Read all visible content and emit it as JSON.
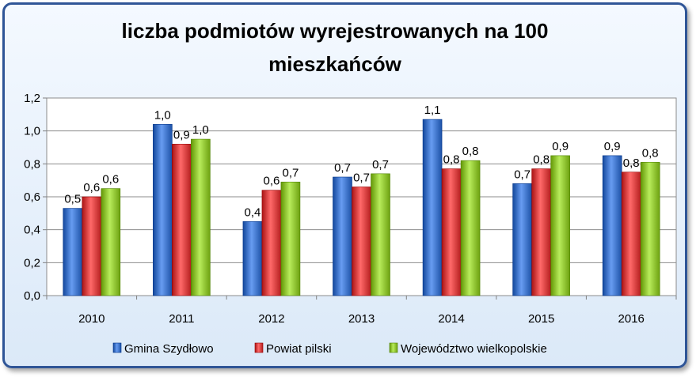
{
  "chart_data": {
    "type": "bar",
    "title_lines": [
      "liczba podmiotów wyrejestrowanych na 100",
      "mieszkańców"
    ],
    "xlabel": "",
    "ylabel": "",
    "categories": [
      "2010",
      "2011",
      "2012",
      "2013",
      "2014",
      "2015",
      "2016"
    ],
    "series": [
      {
        "name": "Gmina Szydłowo",
        "color": "#3a6fc4",
        "values": [
          0.53,
          1.04,
          0.45,
          0.72,
          1.07,
          0.68,
          0.85
        ],
        "labels": [
          "0,5",
          "1,0",
          "0,4",
          "0,7",
          "1,1",
          "0,7",
          "0,9"
        ]
      },
      {
        "name": "Powiat pilski",
        "color": "#d23c3c",
        "values": [
          0.6,
          0.92,
          0.64,
          0.66,
          0.77,
          0.77,
          0.75
        ],
        "labels": [
          "0,6",
          "0,9",
          "0,6",
          "0,7",
          "0,8",
          "0,8",
          "0,8"
        ]
      },
      {
        "name": "Województwo wielkopolskie",
        "color": "#8bbf2e",
        "values": [
          0.65,
          0.95,
          0.69,
          0.74,
          0.82,
          0.85,
          0.81
        ],
        "labels": [
          "0,6",
          "1,0",
          "0,7",
          "0,7",
          "0,8",
          "0,9",
          "0,8"
        ]
      }
    ],
    "ylim": [
      0,
      1.2
    ],
    "yticks": [
      0,
      0.2,
      0.4,
      0.6,
      0.8,
      1.0,
      1.2
    ],
    "ytick_labels": [
      "0,0",
      "0,2",
      "0,4",
      "0,6",
      "0,8",
      "1,0",
      "1,2"
    ],
    "grid": true,
    "legend_position": "bottom"
  }
}
